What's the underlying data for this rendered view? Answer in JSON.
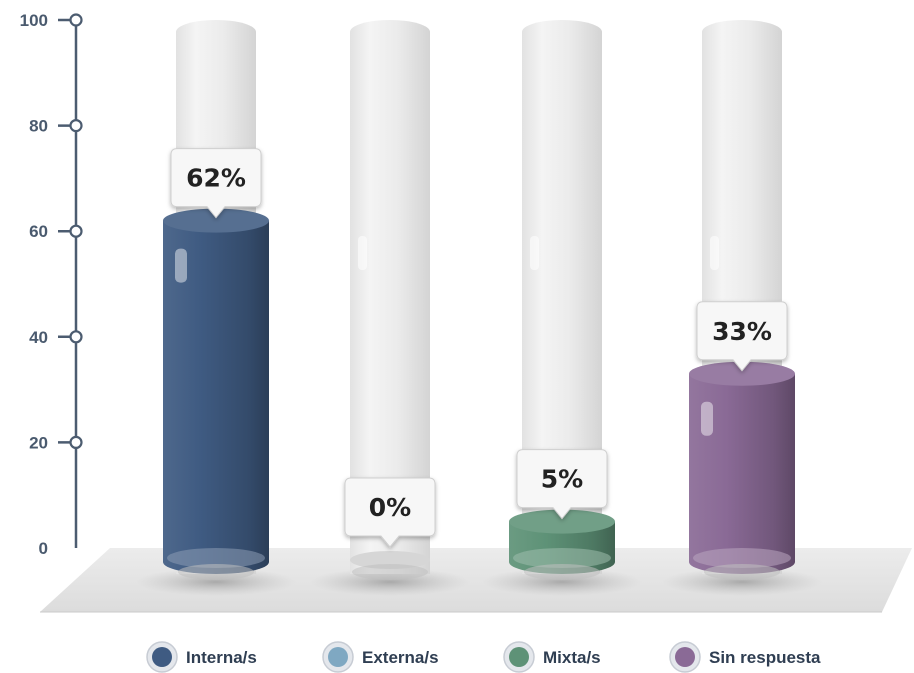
{
  "chart_data": {
    "type": "bar",
    "categories": [
      "Interna/s",
      "Externa/s",
      "Mixta/s",
      "Sin respuesta"
    ],
    "values": [
      62,
      0,
      5,
      33
    ],
    "value_labels": [
      "62%",
      "0%",
      "5%",
      "33%"
    ],
    "ylim": [
      0,
      100
    ],
    "yticks": [
      "0",
      "20",
      "40",
      "60",
      "80",
      "100"
    ],
    "legend_position": "bottom",
    "colors": [
      "#3f5b82",
      "#7fa8c2",
      "#5e9277",
      "#8a6a96"
    ]
  }
}
